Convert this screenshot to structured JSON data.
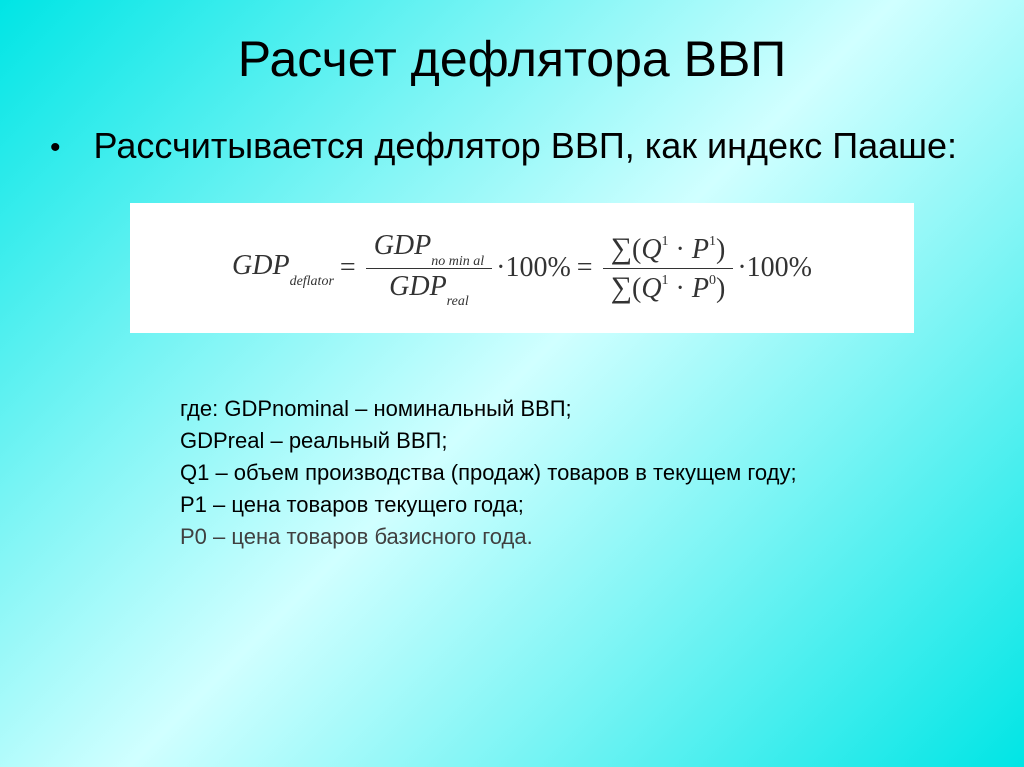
{
  "title": "Расчет дефлятора ВВП",
  "subtitle": "Рассчитывается дефлятор ВВП, как индекс Пааше:",
  "formula": {
    "lhs": "GDP",
    "lhs_sub": "deflator",
    "frac1_num": "GDP",
    "frac1_num_sub": "no min al",
    "frac1_den": "GDP",
    "frac1_den_sub": "real",
    "times100": "·100%",
    "sum_sym": "∑",
    "q1p1": "(Q¹ · P¹)",
    "q1p0": "(Q¹ · P⁰)",
    "times100b": "·100%"
  },
  "definitions": {
    "intro": "где: GDPnominal – номинальный ВВП;",
    "line2": "GDPreal – реальный ВВП;",
    "line3": "Q1 – объем производства (продаж) товаров в текущем году;",
    "line4": "P1 – цена товаров текущего года;",
    "line5": "P0 – цена товаров базисного года."
  },
  "style": {
    "background_gradient": [
      "#00e5e5",
      "#7ff5f5",
      "#d0ffff",
      "#7ff5f5",
      "#00e5e5"
    ],
    "formula_bg": "#ffffff",
    "text_color": "#000000",
    "title_fontsize": 50,
    "subtitle_fontsize": 36,
    "definitions_fontsize": 22
  }
}
